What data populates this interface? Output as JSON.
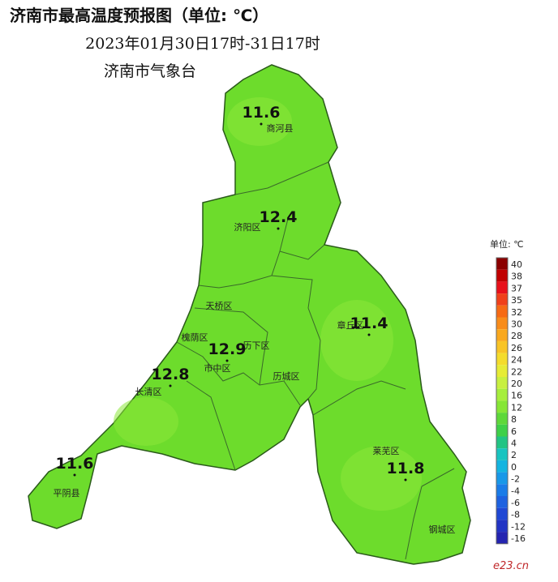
{
  "header": {
    "title": "济南市最高温度预报图（单位: ℃）",
    "subtitle": "2023年01月30日17时-31日17时",
    "source": "济南市气象台"
  },
  "districts": [
    {
      "name": "商河县",
      "value": 11.6
    },
    {
      "name": "济阳区",
      "value": 12.4
    },
    {
      "name": "章丘区",
      "value": 11.4
    },
    {
      "name": "历下区",
      "value": 12.9
    },
    {
      "name": "长清区",
      "value": 12.8
    },
    {
      "name": "平阴县",
      "value": 11.6
    },
    {
      "name": "莱芜区",
      "value": 11.8
    },
    {
      "name": "天桥区"
    },
    {
      "name": "槐荫区"
    },
    {
      "name": "市中区"
    },
    {
      "name": "历城区"
    },
    {
      "name": "钢城区"
    }
  ],
  "legend": {
    "unit": "单位: ℃",
    "ticks": [
      40,
      38,
      37,
      35,
      32,
      30,
      28,
      26,
      24,
      22,
      20,
      16,
      12,
      8,
      6,
      4,
      2,
      0,
      -2,
      -4,
      -6,
      -8,
      -12,
      -16
    ],
    "colors": [
      "#8b0000",
      "#c00000",
      "#e8101a",
      "#f0401a",
      "#f66a14",
      "#f88c1a",
      "#f9a81e",
      "#f8c426",
      "#f4dc2c",
      "#e6ec36",
      "#c8f040",
      "#a6ee3c",
      "#86e636",
      "#5ed83a",
      "#3ed048",
      "#22c484",
      "#18c4c0",
      "#14b4e0",
      "#1898e8",
      "#1a7ce8",
      "#1e62e0",
      "#2048d4",
      "#2234c4",
      "#2424b0"
    ]
  },
  "watermark": "e23.cn"
}
